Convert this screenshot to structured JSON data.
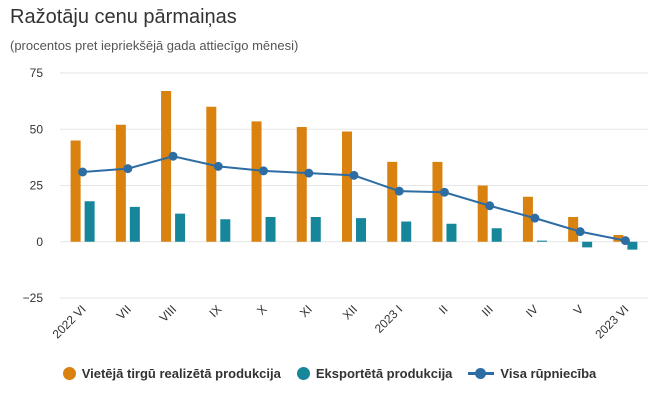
{
  "colors": {
    "domestic": "#d9820f",
    "export": "#16879a",
    "total": "#2e6da4"
  },
  "chart_data": {
    "type": "bar",
    "title": "Ražotāju cenu pārmaiņas",
    "subtitle": "(procentos pret iepriekšējā gada attiecīgo mēnesi)",
    "categories": [
      "2022 VI",
      "VII",
      "VIII",
      "IX",
      "X",
      "XI",
      "XII",
      "2023 I",
      "II",
      "III",
      "IV",
      "V",
      "2023 VI"
    ],
    "ylim": [
      -25,
      75
    ],
    "yticks": [
      75,
      50,
      25,
      0,
      -25
    ],
    "yticks_labels": [
      "75",
      "50",
      "25",
      "0",
      "−25"
    ],
    "grid": true,
    "legend_position": "bottom",
    "series": [
      {
        "name": "Vietējā tirgū realizētā produkcija",
        "kind": "bar",
        "values": [
          45.0,
          52.0,
          67.0,
          60.0,
          53.5,
          51.0,
          49.0,
          35.5,
          35.5,
          25.0,
          20.0,
          11.0,
          3.0
        ]
      },
      {
        "name": "Eksportētā produkcija",
        "kind": "bar",
        "values": [
          18.0,
          15.5,
          12.5,
          10.0,
          11.0,
          11.0,
          10.5,
          9.0,
          8.0,
          6.0,
          0.5,
          -2.5,
          -3.5
        ]
      },
      {
        "name": "Visa rūpniecība",
        "kind": "line",
        "values": [
          31.0,
          32.5,
          38.0,
          33.5,
          31.5,
          30.5,
          29.5,
          22.5,
          22.0,
          16.0,
          10.5,
          4.5,
          0.5
        ]
      }
    ]
  }
}
